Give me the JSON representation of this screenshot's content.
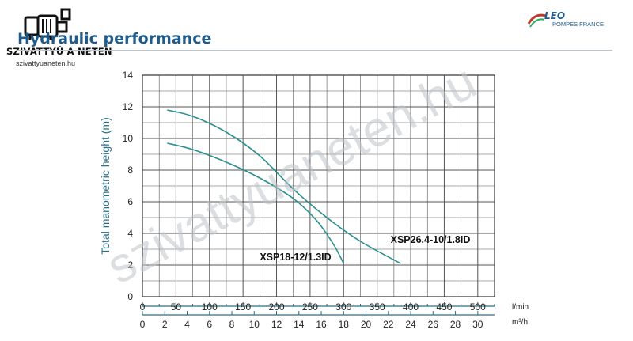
{
  "header": {
    "title": "Hydraulic performance",
    "brand": "LEO",
    "brand_sub": "POMPES FRANCE"
  },
  "logo": {
    "name": "SZIVATTYÚ A NETEN",
    "url": "szivattyuaneten.hu",
    "icon": "pump-icon"
  },
  "watermark": {
    "text": "szivattyuaneten.hu"
  },
  "colors": {
    "curve": "#2a8f8f",
    "axis": "#2b6f86",
    "grid": "#555555",
    "title": "#1f5c8c"
  },
  "chart_data": {
    "type": "line",
    "ylabel": "Total manometric height (m)",
    "xlabel": "l/min",
    "x2label": "m³/h",
    "xlim": [
      0,
      525
    ],
    "ylim": [
      0,
      14
    ],
    "xticks": [
      0,
      50,
      100,
      150,
      200,
      250,
      300,
      350,
      400,
      450,
      500
    ],
    "yticks": [
      0,
      2,
      4,
      6,
      8,
      10,
      12,
      14
    ],
    "x2ticks": [
      0,
      2,
      4,
      6,
      8,
      10,
      12,
      14,
      16,
      18,
      20,
      22,
      24,
      26,
      28,
      30
    ],
    "grid": true,
    "series": [
      {
        "name": "XSP18-12/1.3ID",
        "x": [
          37,
          75,
          125,
          175,
          225,
          260,
          285,
          300
        ],
        "y": [
          9.7,
          9.3,
          8.5,
          7.5,
          6.2,
          4.8,
          3.3,
          2.1
        ]
      },
      {
        "name": "XSP26.4-10/1.8ID",
        "x": [
          37,
          75,
          125,
          175,
          225,
          275,
          325,
          385
        ],
        "y": [
          11.8,
          11.4,
          10.4,
          8.9,
          6.8,
          5.0,
          3.5,
          2.1
        ]
      }
    ],
    "annotations": [
      {
        "text": "XSP26.4-10/1.8ID",
        "x": 370,
        "y": 3.6
      },
      {
        "text": "XSP18-12/1.3ID",
        "x": 175,
        "y": 2.5
      }
    ]
  }
}
